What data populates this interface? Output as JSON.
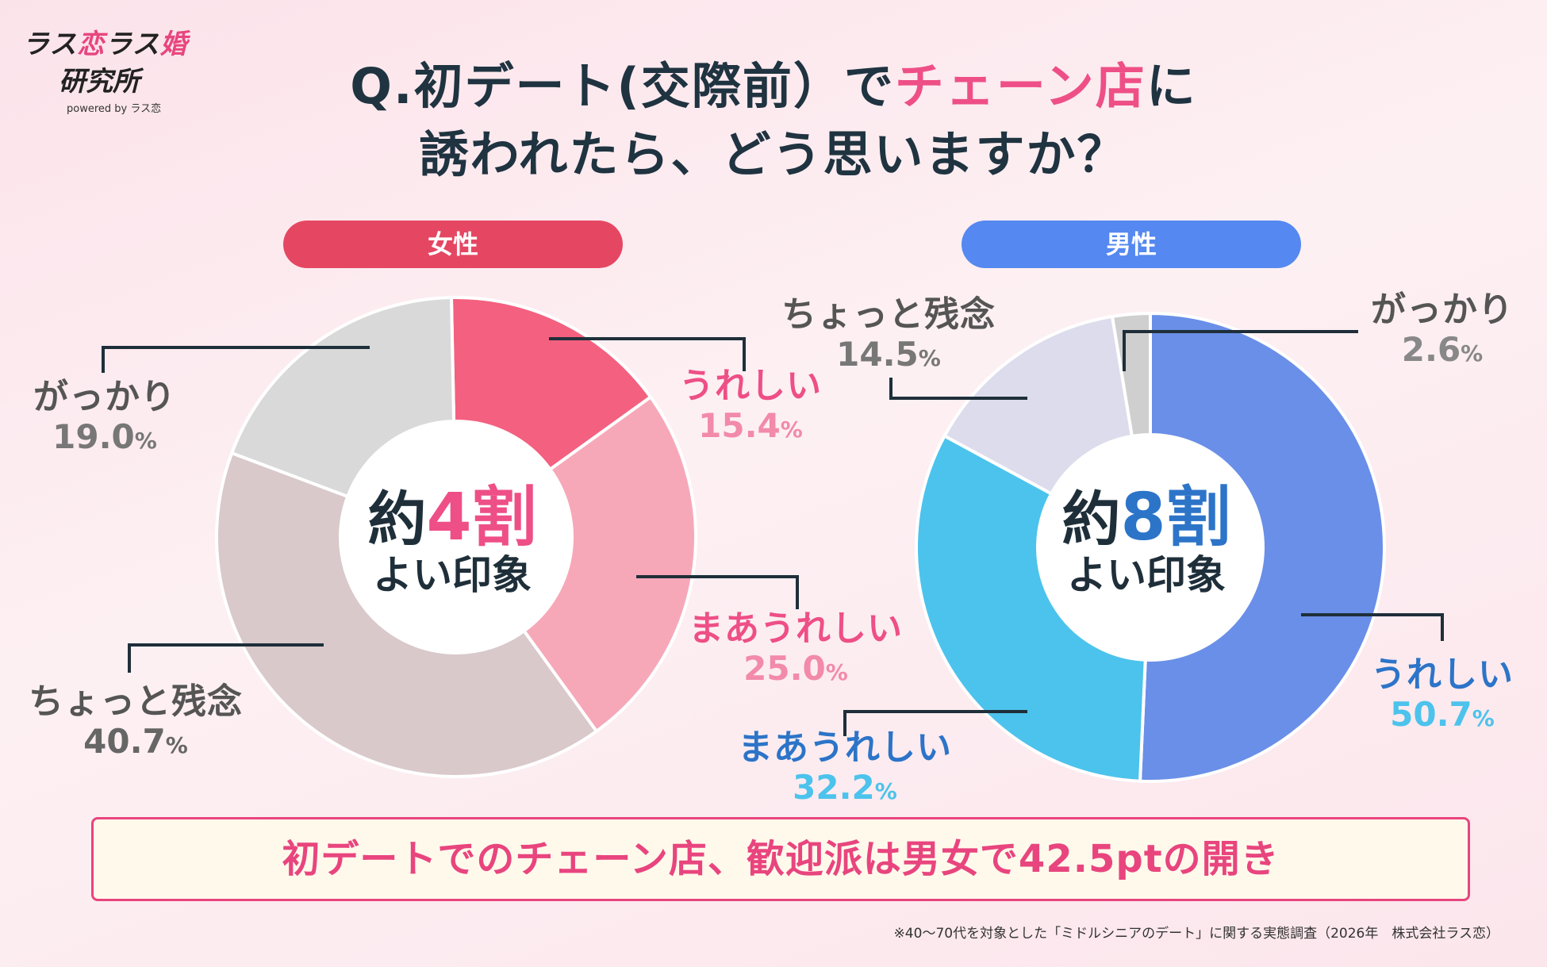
{
  "logo": {
    "line1a": "ラス",
    "line1b": "恋",
    "line1c": "ラス",
    "line1d": "婚",
    "line2": "研究所",
    "line3": "powered by ラス恋"
  },
  "title": {
    "line1_pre": "Q.初デート(交際前）で",
    "line1_highlight": "チェーン店",
    "line1_post": "に",
    "line2": "誘われたら、どう思いますか？"
  },
  "female": {
    "header": "女性",
    "center_pre": "約",
    "center_highlight": "4割",
    "center_line2": "よい印象"
  },
  "male": {
    "header": "男性",
    "center_pre": "約",
    "center_highlight": "8割",
    "center_line2": "よい印象"
  },
  "chart_data": [
    {
      "type": "pie",
      "title": "女性",
      "categories": [
        "うれしい",
        "まあうれしい",
        "ちょっと残念",
        "がっかり"
      ],
      "values": [
        15.4,
        25.0,
        40.7,
        19.0
      ],
      "unit": "%",
      "colors": [
        "#f4607f",
        "#f7a8b8",
        "#d9c9cb",
        "#d9d9d9"
      ],
      "label_colors": [
        "#ee4f86",
        "#f07aa2",
        "#555555",
        "#555555"
      ]
    },
    {
      "type": "pie",
      "title": "男性",
      "categories": [
        "うれしい",
        "まあうれしい",
        "ちょっと残念",
        "がっかり"
      ],
      "values": [
        50.7,
        32.2,
        14.5,
        2.6
      ],
      "unit": "%",
      "colors": [
        "#6a8fe8",
        "#4cc3ec",
        "#dcdcec",
        "#cfcfcf"
      ],
      "label_colors": [
        "#2c74c8",
        "#2c74c8",
        "#555555",
        "#555555"
      ]
    }
  ],
  "summary": "初デートでのチェーン店、歓迎派は男女で42.5ptの開き",
  "footnote": "※40〜70代を対象とした「ミドルシニアのデート」に関する実態調査（2026年　株式会社ラス恋）"
}
